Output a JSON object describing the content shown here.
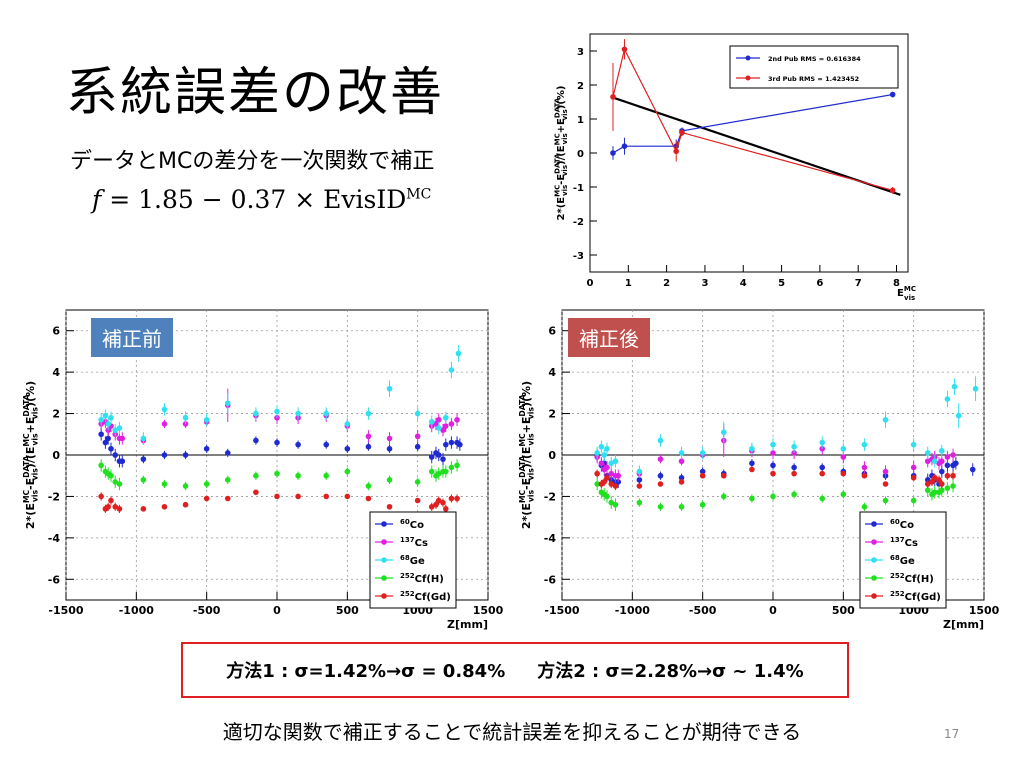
{
  "slide": {
    "title": "系統誤差の改善",
    "subtitle": "データとMCの差分を一次関数で補正",
    "formula": {
      "lhs": "f",
      "rhs": " = 1.85 − 0.37 × EvisID",
      "sup": "MC"
    },
    "tag_before": "補正前",
    "tag_after": "補正後",
    "results": {
      "method1": "方法1 : σ=1.42%→σ = 0.84%",
      "method2": "方法2 : σ=2.28%→σ ~ 1.4%"
    },
    "conclusion": "適切な関数で補正することで統計誤差を抑えることが期待できる",
    "page_number": "17"
  },
  "chart_data": [
    {
      "id": "top-fit",
      "type": "line",
      "xlabel": "E_vis^MC",
      "ylabel": "2*(E_vis^MC - E_vis^DATA)/(E_vis^MC + E_vis^DATA) (%)",
      "xlim": [
        0,
        8.3
      ],
      "ylim": [
        -3.5,
        3.5
      ],
      "xticks": [
        0,
        1,
        2,
        3,
        4,
        5,
        6,
        7,
        8
      ],
      "yticks": [
        -3,
        -2,
        -1,
        0,
        1,
        2,
        3
      ],
      "series": [
        {
          "name": "2nd Pub RMS = 0.616384",
          "color": "#1f2bd0",
          "x": [
            0.6,
            0.9,
            2.25,
            2.4,
            7.9
          ],
          "y": [
            0.0,
            0.2,
            0.2,
            0.65,
            1.72
          ],
          "err": [
            0.2,
            0.25,
            0.2,
            0.1,
            0.08
          ]
        },
        {
          "name": "3rd Pub RMS = 1.423452",
          "color": "#e02020",
          "x": [
            0.6,
            0.9,
            2.25,
            2.4,
            7.9
          ],
          "y": [
            1.65,
            3.05,
            0.05,
            0.6,
            -1.1
          ],
          "err": [
            1.0,
            0.3,
            0.3,
            0.1,
            0.1
          ]
        }
      ],
      "fit_line": {
        "x": [
          0.6,
          8.1
        ],
        "y": [
          1.63,
          -1.23
        ],
        "color": "#000000"
      }
    },
    {
      "id": "before",
      "type": "scatter",
      "xlabel": "Z[mm]",
      "ylabel": "2*(E_vis^MC - E_vis^DATA)/(E_vis^MC + E_vis^DATA) (%)",
      "xlim": [
        -1500,
        1500
      ],
      "ylim": [
        -7,
        7
      ],
      "xticks": [
        -1500,
        -1000,
        -500,
        0,
        500,
        1000,
        1500
      ],
      "yticks": [
        -6,
        -4,
        -2,
        0,
        2,
        4,
        6
      ],
      "series": [
        {
          "name": "60Co",
          "color": "#1f2bd0",
          "x": [
            -1250,
            -1220,
            -1200,
            -1180,
            -1150,
            -1120,
            -1100,
            -950,
            -800,
            -650,
            -500,
            -350,
            -150,
            0,
            150,
            350,
            500,
            650,
            800,
            1000,
            1100,
            1130,
            1150,
            1180,
            1200,
            1240,
            1280,
            1300
          ],
          "y": [
            1.0,
            0.6,
            0.8,
            0.3,
            0.0,
            -0.3,
            -0.3,
            -0.2,
            0.0,
            0.0,
            0.3,
            0.1,
            0.7,
            0.6,
            0.5,
            0.5,
            0.3,
            0.4,
            0.3,
            0.4,
            -0.1,
            0.1,
            0.0,
            -0.2,
            0.5,
            0.6,
            0.6,
            0.5
          ],
          "err": [
            0.3,
            0.3,
            0.3,
            0.3,
            0.3,
            0.3,
            0.3,
            0.2,
            0.2,
            0.2,
            0.2,
            0.2,
            0.2,
            0.2,
            0.2,
            0.2,
            0.2,
            0.2,
            0.2,
            0.2,
            0.3,
            0.3,
            0.3,
            0.3,
            0.3,
            0.3,
            0.3,
            0.3
          ]
        },
        {
          "name": "137Cs",
          "color": "#e020e0",
          "x": [
            -1250,
            -1220,
            -1200,
            -1180,
            -1150,
            -1120,
            -1100,
            -950,
            -800,
            -650,
            -500,
            -350,
            -150,
            0,
            150,
            350,
            500,
            650,
            800,
            1000,
            1100,
            1130,
            1150,
            1180,
            1200,
            1240,
            1280
          ],
          "y": [
            1.5,
            1.6,
            1.2,
            1.4,
            1.0,
            0.8,
            0.8,
            0.7,
            1.5,
            1.5,
            1.6,
            2.4,
            1.9,
            1.8,
            1.8,
            1.9,
            1.4,
            0.9,
            0.8,
            0.9,
            1.4,
            1.5,
            1.7,
            1.2,
            1.4,
            1.5,
            1.7
          ],
          "err": [
            0.3,
            0.3,
            0.3,
            0.3,
            0.3,
            0.3,
            0.3,
            0.2,
            0.2,
            0.2,
            0.2,
            0.8,
            0.3,
            0.3,
            0.3,
            0.3,
            0.3,
            0.3,
            0.3,
            0.3,
            0.3,
            0.3,
            0.3,
            0.3,
            0.3,
            0.3,
            0.3
          ]
        },
        {
          "name": "68Ge",
          "color": "#30e0f0",
          "x": [
            -1250,
            -1220,
            -1200,
            -1180,
            -1150,
            -1120,
            -950,
            -800,
            -650,
            -500,
            -350,
            -150,
            0,
            150,
            350,
            500,
            650,
            800,
            1000,
            1100,
            1150,
            1200,
            1240,
            1290
          ],
          "y": [
            1.7,
            1.9,
            1.5,
            1.8,
            1.2,
            1.3,
            0.8,
            2.2,
            1.8,
            1.7,
            2.5,
            2.0,
            2.1,
            2.0,
            2.0,
            1.5,
            2.0,
            3.2,
            2.0,
            1.6,
            1.3,
            1.8,
            4.1,
            4.9
          ],
          "err": [
            0.3,
            0.3,
            0.3,
            0.3,
            0.3,
            0.3,
            0.3,
            0.3,
            0.3,
            0.3,
            0.5,
            0.3,
            0.3,
            0.3,
            0.3,
            0.3,
            0.3,
            0.4,
            0.3,
            0.3,
            0.3,
            0.3,
            0.4,
            0.4
          ]
        },
        {
          "name": "252Cf(H)",
          "color": "#20e020",
          "x": [
            -1250,
            -1220,
            -1200,
            -1180,
            -1150,
            -1120,
            -950,
            -800,
            -650,
            -500,
            -350,
            -150,
            0,
            150,
            350,
            500,
            650,
            800,
            1000,
            1100,
            1130,
            1150,
            1180,
            1200,
            1240,
            1280
          ],
          "y": [
            -0.5,
            -0.8,
            -0.9,
            -1.0,
            -1.3,
            -1.4,
            -1.2,
            -1.4,
            -1.5,
            -1.4,
            -1.2,
            -1.0,
            -0.9,
            -1.0,
            -1.0,
            -0.8,
            -1.5,
            -1.2,
            -1.3,
            -0.8,
            -1.0,
            -0.9,
            -0.8,
            -0.8,
            -0.6,
            -0.5
          ],
          "err": [
            0.3,
            0.3,
            0.3,
            0.3,
            0.3,
            0.3,
            0.2,
            0.2,
            0.2,
            0.2,
            0.2,
            0.2,
            0.2,
            0.2,
            0.2,
            0.2,
            0.2,
            0.2,
            0.2,
            0.3,
            0.3,
            0.3,
            0.3,
            0.3,
            0.3,
            0.3
          ]
        },
        {
          "name": "252Cf(Gd)",
          "color": "#e02020",
          "x": [
            -1250,
            -1220,
            -1200,
            -1180,
            -1150,
            -1120,
            -950,
            -800,
            -650,
            -500,
            -350,
            -150,
            0,
            150,
            350,
            500,
            650,
            800,
            1000,
            1100,
            1130,
            1150,
            1180,
            1200,
            1240,
            1280
          ],
          "y": [
            -2.0,
            -2.6,
            -2.5,
            -2.2,
            -2.5,
            -2.6,
            -2.6,
            -2.5,
            -2.4,
            -2.1,
            -2.1,
            -1.8,
            -2.0,
            -2.0,
            -2.0,
            -2.0,
            -2.1,
            -2.5,
            -2.2,
            -2.5,
            -2.4,
            -2.2,
            -2.3,
            -2.6,
            -2.1,
            -2.1
          ],
          "err": [
            0.2,
            0.2,
            0.2,
            0.2,
            0.2,
            0.2,
            0.1,
            0.1,
            0.1,
            0.1,
            0.1,
            0.1,
            0.1,
            0.1,
            0.1,
            0.1,
            0.1,
            0.1,
            0.1,
            0.2,
            0.2,
            0.2,
            0.2,
            0.2,
            0.2,
            0.2
          ]
        }
      ]
    },
    {
      "id": "after",
      "type": "scatter",
      "xlabel": "Z[mm]",
      "ylabel": "2*(E_vis^MC - E_vis^DATA)/(E_vis^MC + E_vis^DATA) (%)",
      "xlim": [
        -1500,
        1500
      ],
      "ylim": [
        -7,
        7
      ],
      "xticks": [
        -1500,
        -1000,
        -500,
        0,
        500,
        1000,
        1500
      ],
      "yticks": [
        -6,
        -4,
        -2,
        0,
        2,
        4,
        6
      ],
      "series": [
        {
          "name": "60Co",
          "color": "#1f2bd0",
          "x": [
            -1250,
            -1220,
            -1200,
            -1180,
            -1150,
            -1120,
            -1100,
            -950,
            -800,
            -650,
            -500,
            -350,
            -150,
            0,
            150,
            350,
            500,
            650,
            800,
            1000,
            1100,
            1130,
            1150,
            1180,
            1200,
            1240,
            1280,
            1300,
            1420
          ],
          "y": [
            0.0,
            -0.5,
            -0.4,
            -1.0,
            -1.2,
            -1.3,
            -1.3,
            -1.2,
            -1.0,
            -1.1,
            -0.8,
            -0.9,
            -0.4,
            -0.5,
            -0.6,
            -0.6,
            -0.8,
            -0.9,
            -1.0,
            -1.0,
            -1.2,
            -1.0,
            -1.2,
            -1.4,
            -0.8,
            -0.5,
            -0.5,
            -0.4,
            -0.7
          ],
          "err": [
            0.3,
            0.3,
            0.3,
            0.3,
            0.3,
            0.3,
            0.3,
            0.2,
            0.2,
            0.2,
            0.2,
            0.2,
            0.2,
            0.2,
            0.2,
            0.2,
            0.2,
            0.2,
            0.2,
            0.2,
            0.3,
            0.3,
            0.3,
            0.3,
            0.3,
            0.3,
            0.3,
            0.3,
            0.3
          ]
        },
        {
          "name": "137Cs",
          "color": "#e020e0",
          "x": [
            -1250,
            -1220,
            -1200,
            -1180,
            -1150,
            -1120,
            -1100,
            -950,
            -800,
            -650,
            -500,
            -350,
            -150,
            0,
            150,
            350,
            500,
            650,
            800,
            1000,
            1100,
            1130,
            1150,
            1180,
            1200,
            1240,
            1280
          ],
          "y": [
            -0.1,
            -0.4,
            -0.7,
            -0.6,
            -0.9,
            -1.0,
            -1.0,
            -0.9,
            -0.2,
            -0.3,
            0.0,
            0.7,
            0.2,
            0.1,
            0.1,
            0.3,
            -0.1,
            -0.6,
            -0.8,
            -0.6,
            -0.3,
            -0.2,
            -0.1,
            -0.4,
            -0.3,
            -0.1,
            0.0
          ],
          "err": [
            0.3,
            0.3,
            0.3,
            0.3,
            0.3,
            0.3,
            0.3,
            0.2,
            0.2,
            0.2,
            0.2,
            0.8,
            0.3,
            0.3,
            0.3,
            0.3,
            0.3,
            0.3,
            0.3,
            0.3,
            0.3,
            0.3,
            0.3,
            0.3,
            0.3,
            0.3,
            0.3
          ]
        },
        {
          "name": "68Ge",
          "color": "#30e0f0",
          "x": [
            -1250,
            -1220,
            -1200,
            -1180,
            -1150,
            -1120,
            -950,
            -800,
            -650,
            -500,
            -350,
            -150,
            0,
            150,
            350,
            500,
            650,
            800,
            1000,
            1100,
            1150,
            1200,
            1240,
            1290,
            1320,
            1440
          ],
          "y": [
            0.1,
            0.4,
            0.0,
            0.3,
            -0.4,
            -0.3,
            -0.8,
            0.7,
            0.1,
            0.1,
            1.1,
            0.3,
            0.5,
            0.4,
            0.6,
            0.3,
            0.5,
            1.7,
            0.5,
            0.1,
            -0.3,
            0.2,
            2.7,
            3.3,
            1.9,
            3.2
          ],
          "err": [
            0.3,
            0.3,
            0.3,
            0.3,
            0.3,
            0.3,
            0.3,
            0.3,
            0.3,
            0.3,
            0.5,
            0.3,
            0.3,
            0.3,
            0.3,
            0.3,
            0.3,
            0.4,
            0.3,
            0.3,
            0.3,
            0.3,
            0.4,
            0.4,
            0.6,
            0.6
          ]
        },
        {
          "name": "252Cf(H)",
          "color": "#20e020",
          "x": [
            -1250,
            -1220,
            -1200,
            -1180,
            -1150,
            -1120,
            -950,
            -800,
            -650,
            -500,
            -350,
            -150,
            0,
            150,
            350,
            500,
            650,
            800,
            1000,
            1100,
            1130,
            1150,
            1180,
            1200,
            1240,
            1280
          ],
          "y": [
            -1.4,
            -1.8,
            -1.9,
            -2.0,
            -2.3,
            -2.4,
            -2.3,
            -2.5,
            -2.5,
            -2.4,
            -2.0,
            -2.1,
            -2.0,
            -1.9,
            -2.1,
            -1.9,
            -2.5,
            -2.2,
            -2.2,
            -1.7,
            -1.9,
            -1.8,
            -1.8,
            -1.7,
            -1.6,
            -1.5
          ],
          "err": [
            0.3,
            0.3,
            0.3,
            0.3,
            0.3,
            0.3,
            0.2,
            0.2,
            0.2,
            0.2,
            0.2,
            0.2,
            0.2,
            0.2,
            0.2,
            0.2,
            0.2,
            0.2,
            0.2,
            0.3,
            0.3,
            0.3,
            0.3,
            0.3,
            0.3,
            0.3
          ]
        },
        {
          "name": "252Cf(Gd)",
          "color": "#e02020",
          "x": [
            -1250,
            -1220,
            -1200,
            -1180,
            -1150,
            -1120,
            -950,
            -800,
            -650,
            -500,
            -350,
            -150,
            0,
            150,
            350,
            500,
            650,
            800,
            1000,
            1100,
            1130,
            1150,
            1180,
            1200,
            1240,
            1280
          ],
          "y": [
            -0.9,
            -1.4,
            -1.3,
            -1.1,
            -1.4,
            -1.5,
            -1.5,
            -1.4,
            -1.3,
            -1.0,
            -1.0,
            -0.7,
            -0.9,
            -0.9,
            -0.9,
            -0.9,
            -1.0,
            -1.4,
            -1.1,
            -1.4,
            -1.3,
            -1.1,
            -1.2,
            -1.4,
            -1.0,
            -1.0
          ],
          "err": [
            0.2,
            0.2,
            0.2,
            0.2,
            0.2,
            0.2,
            0.1,
            0.1,
            0.1,
            0.1,
            0.1,
            0.1,
            0.1,
            0.1,
            0.1,
            0.1,
            0.1,
            0.1,
            0.1,
            0.2,
            0.2,
            0.2,
            0.2,
            0.2,
            0.2,
            0.2
          ]
        }
      ]
    }
  ]
}
